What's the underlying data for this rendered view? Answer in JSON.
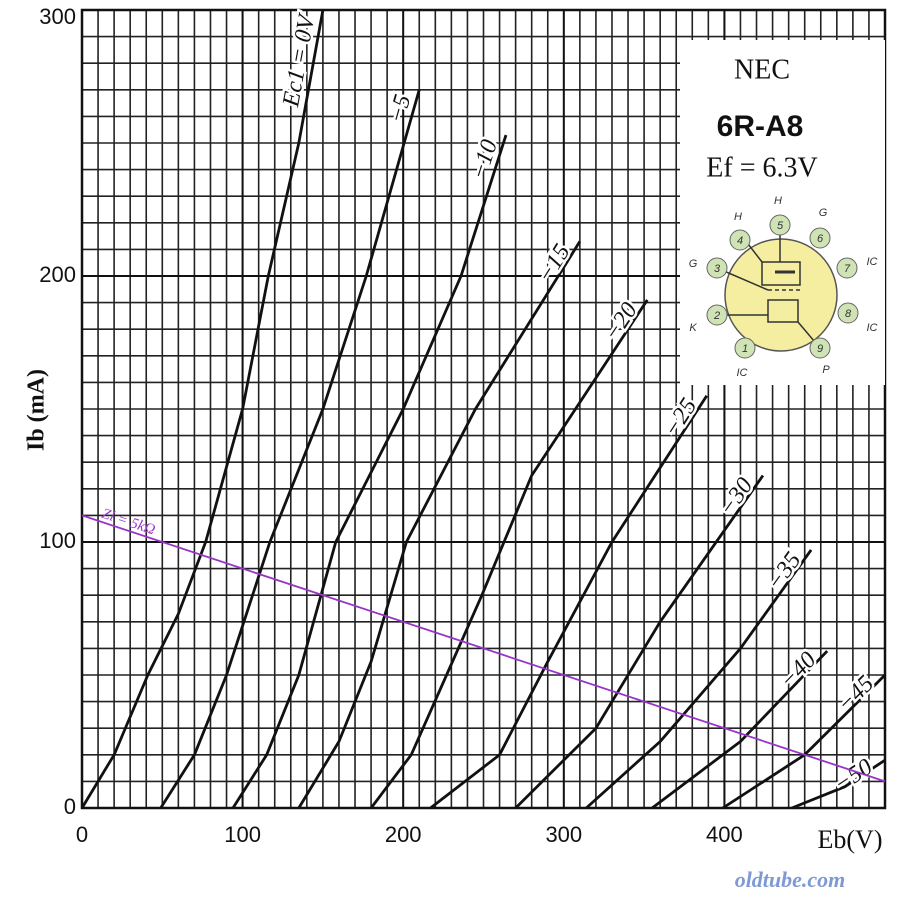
{
  "chart_data": {
    "type": "line",
    "x_label": "Eb(V)",
    "y_label": "Ib (mA)",
    "xlim": [
      0,
      500
    ],
    "ylim": [
      0,
      300
    ],
    "xticks": [
      0,
      100,
      200,
      300,
      400
    ],
    "yticks": [
      0,
      100,
      200,
      300
    ],
    "xgrid_minor": [
      10,
      20,
      30,
      40,
      50,
      60,
      70,
      80,
      90,
      100,
      110,
      120,
      130,
      140,
      150,
      160,
      170,
      180,
      190,
      200,
      210,
      220,
      230,
      240,
      250,
      260,
      270,
      280,
      290,
      300,
      310,
      320,
      330,
      340,
      350,
      360,
      370,
      380,
      390,
      400,
      410,
      420,
      430,
      440,
      450,
      460,
      470,
      480,
      490
    ],
    "ygrid_minor": [
      10,
      20,
      30,
      40,
      50,
      60,
      70,
      80,
      90,
      100,
      110,
      120,
      130,
      140,
      150,
      160,
      170,
      180,
      190,
      200,
      210,
      220,
      230,
      240,
      250,
      260,
      270,
      280,
      290
    ],
    "series": [
      {
        "name": "Ec1 = 0V",
        "color": "#111111",
        "x": [
          0,
          20,
          41,
          60,
          77,
          100,
          116,
          135,
          150
        ],
        "values": [
          0,
          20,
          50,
          73,
          100,
          150,
          200,
          250,
          300
        ]
      },
      {
        "name": "−5",
        "color": "#111111",
        "x": [
          49,
          70,
          90,
          117,
          150,
          177,
          210
        ],
        "values": [
          0,
          20,
          50,
          100,
          150,
          200,
          270
        ]
      },
      {
        "name": "−10",
        "color": "#111111",
        "x": [
          94,
          115,
          135,
          158,
          200,
          236,
          264
        ],
        "values": [
          0,
          20,
          50,
          100,
          150,
          200,
          253
        ]
      },
      {
        "name": "−15",
        "color": "#111111",
        "x": [
          135,
          160,
          180,
          202,
          245,
          310
        ],
        "values": [
          0,
          25,
          55,
          100,
          150,
          213
        ]
      },
      {
        "name": "−20",
        "color": "#111111",
        "x": [
          180,
          205,
          227,
          249,
          280,
          352
        ],
        "values": [
          0,
          20,
          50,
          80,
          125,
          191
        ]
      },
      {
        "name": "−25",
        "color": "#111111",
        "x": [
          217,
          260,
          290,
          330,
          389
        ],
        "values": [
          0,
          20,
          55,
          100,
          155
        ]
      },
      {
        "name": "−30",
        "color": "#111111",
        "x": [
          270,
          320,
          360,
          424
        ],
        "values": [
          0,
          30,
          70,
          125
        ]
      },
      {
        "name": "−35",
        "color": "#111111",
        "x": [
          314,
          360,
          410,
          454
        ],
        "values": [
          0,
          25,
          60,
          97
        ]
      },
      {
        "name": "−40",
        "color": "#111111",
        "x": [
          355,
          410,
          464
        ],
        "values": [
          0,
          25,
          59
        ]
      },
      {
        "name": "−45",
        "color": "#111111",
        "x": [
          399,
          450,
          500
        ],
        "values": [
          0,
          20,
          50
        ]
      },
      {
        "name": "−50",
        "color": "#111111",
        "x": [
          442,
          475,
          500
        ],
        "values": [
          0,
          8,
          18
        ]
      },
      {
        "name": "Zl = 5kΩ",
        "color": "#9933cc",
        "x": [
          0,
          500
        ],
        "values": [
          110,
          10
        ]
      }
    ]
  },
  "inset": {
    "brand": "NEC",
    "model": "6R-A8",
    "heater": "Ef = 6.3V",
    "pins": [
      {
        "number": "1",
        "label": "IC"
      },
      {
        "number": "2",
        "label": "K"
      },
      {
        "number": "3",
        "label": "G"
      },
      {
        "number": "4",
        "label": "H"
      },
      {
        "number": "5",
        "label": "H"
      },
      {
        "number": "6",
        "label": "G"
      },
      {
        "number": "7",
        "label": "IC"
      },
      {
        "number": "8",
        "label": "IC"
      },
      {
        "number": "9",
        "label": "P"
      }
    ]
  },
  "watermark": "oldtube.com"
}
